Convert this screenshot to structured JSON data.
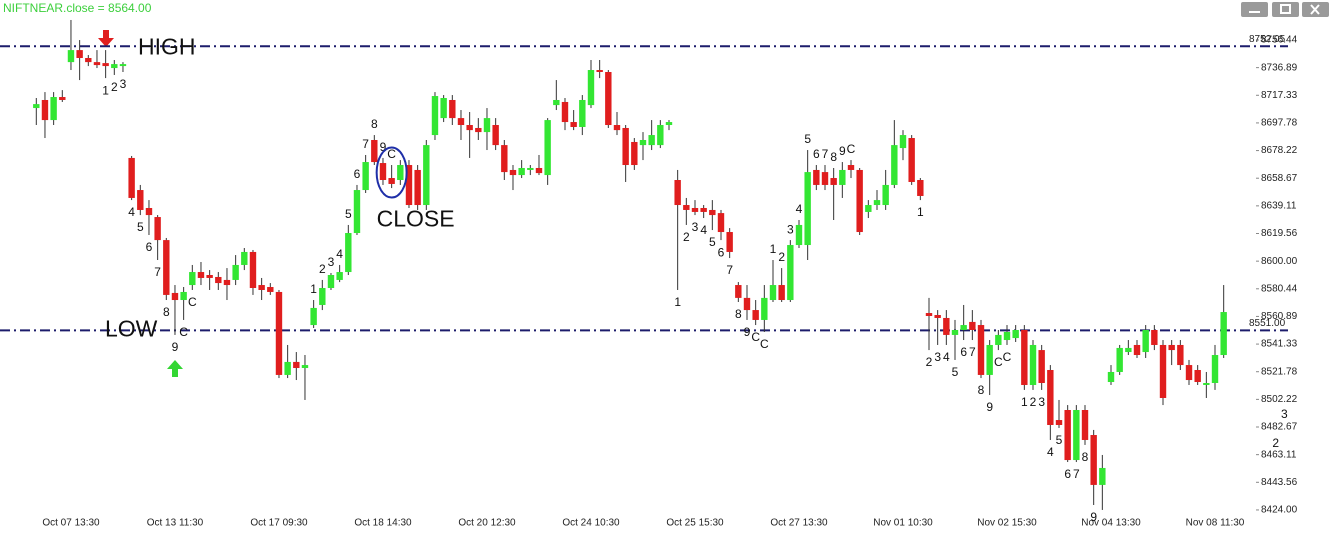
{
  "chart_data": {
    "type": "candlestick",
    "title": "NIFTNEAR.close = 8564.00",
    "categories": [
      null,
      null,
      null,
      null,
      "Oct 07 13:30",
      null,
      null,
      null,
      null,
      null,
      null,
      null,
      null,
      null,
      null,
      null,
      "Oct 13 11:30",
      null,
      null,
      null,
      null,
      null,
      null,
      null,
      null,
      null,
      null,
      null,
      "Oct 17 09:30",
      null,
      null,
      null,
      null,
      null,
      null,
      null,
      null,
      null,
      null,
      null,
      "Oct 18 14:30",
      null,
      null,
      null,
      null,
      null,
      null,
      null,
      null,
      null,
      null,
      null,
      "Oct 20 12:30",
      null,
      null,
      null,
      null,
      null,
      null,
      null,
      null,
      null,
      null,
      null,
      "Oct 24 10:30",
      null,
      null,
      null,
      null,
      null,
      null,
      null,
      null,
      null,
      null,
      null,
      "Oct 25 15:30",
      null,
      null,
      null,
      null,
      null,
      null,
      null,
      null,
      null,
      null,
      null,
      "Oct 27 13:30",
      null,
      null,
      null,
      null,
      null,
      null,
      null,
      null,
      null,
      null,
      null,
      "Nov 01 10:30",
      null,
      null,
      null,
      null,
      null,
      null,
      null,
      null,
      null,
      null,
      null,
      "Nov 02 15:30",
      null,
      null,
      null,
      null,
      null,
      null,
      null,
      null,
      null,
      null,
      null,
      "Nov 04 13:30",
      null,
      null,
      null,
      null,
      null,
      null,
      null,
      null,
      null,
      null,
      null,
      "Nov 08 11:30",
      null
    ],
    "open": [
      8708.3,
      8714.0,
      8699.8,
      8716.1,
      8740.8,
      8749.3,
      8743.7,
      8740.8,
      8740.1,
      8736.6,
      8738.0,
      8673.0,
      8650.3,
      8637.6,
      8631.2,
      8614.9,
      8577.5,
      8572.5,
      8583.1,
      8592.3,
      8590.2,
      8588.8,
      8586.7,
      8586.7,
      8597.3,
      8606.5,
      8583.1,
      8581.7,
      8578.2,
      8519.5,
      8528.7,
      8524.4,
      8554.8,
      8569.0,
      8581.0,
      8586.7,
      8592.3,
      8619.9,
      8650.3,
      8685.7,
      8669.4,
      8658.8,
      8657.4,
      8668.0,
      8664.5,
      8639.7,
      8689.2,
      8701.2,
      8714.0,
      8701.2,
      8696.3,
      8694.2,
      8691.3,
      8696.3,
      8682.1,
      8664.5,
      8660.9,
      8664.5,
      8665.9,
      8660.9,
      8710.4,
      8712.6,
      8698.4,
      8694.9,
      8710.4,
      8735.2,
      8733.8,
      8696.3,
      8694.2,
      8684.3,
      8682.1,
      8682.1,
      8682.1,
      8696.3,
      8657.4,
      8639.7,
      8637.6,
      8637.6,
      8636.2,
      8634.0,
      8620.6,
      8583.1,
      8574.0,
      8565.4,
      8558.4,
      8572.5,
      8583.1,
      8572.5,
      8611.4,
      8611.4,
      8664.5,
      8663.0,
      8658.8,
      8653.9,
      8668.0,
      8664.5,
      8634.8,
      8639.7,
      8639.7,
      8653.9,
      8680.0,
      8687.1,
      8657.4,
      8563.3,
      8561.9,
      8559.8,
      8547.8,
      8551.3,
      8557.0,
      8554.8,
      8519.5,
      8540.7,
      8544.2,
      8545.6,
      8551.3,
      8512.4,
      8537.1,
      8523.0,
      8487.6,
      8494.7,
      8459.3,
      8494.7,
      8477.0,
      8441.7,
      8514.5,
      8521.6,
      8535.7,
      8540.7,
      8535.7,
      8551.3,
      8540.7,
      8540.7,
      8540.7,
      8526.5,
      8523.0,
      8512.4,
      8513.8,
      8533.6
    ],
    "high": [
      8715.4,
      8719.6,
      8719.6,
      8721.0,
      8770.6,
      8756.4,
      8745.8,
      8749.3,
      8749.3,
      8742.3,
      8740.8,
      8674.4,
      8653.9,
      8643.2,
      8632.6,
      8616.4,
      8583.1,
      8581.7,
      8597.3,
      8599.4,
      8593.7,
      8592.3,
      8595.1,
      8604.3,
      8609.3,
      8607.9,
      8588.1,
      8584.5,
      8579.6,
      8540.7,
      8535.7,
      8533.6,
      8572.5,
      8586.7,
      8591.6,
      8597.3,
      8625.6,
      8653.9,
      8675.1,
      8689.2,
      8673.0,
      8668.0,
      8671.5,
      8671.5,
      8668.0,
      8685.7,
      8719.6,
      8717.5,
      8717.5,
      8706.9,
      8705.5,
      8701.2,
      8708.3,
      8701.2,
      8685.7,
      8668.0,
      8671.5,
      8668.0,
      8675.1,
      8701.2,
      8728.1,
      8715.4,
      8706.9,
      8717.5,
      8742.3,
      8742.3,
      8735.2,
      8705.5,
      8696.3,
      8687.1,
      8691.3,
      8699.8,
      8699.8,
      8699.8,
      8664.5,
      8644.7,
      8643.2,
      8639.7,
      8643.2,
      8636.2,
      8623.4,
      8585.2,
      8583.1,
      8572.5,
      8583.1,
      8600.8,
      8595.1,
      8614.9,
      8629.1,
      8678.6,
      8668.0,
      8668.0,
      8665.9,
      8670.1,
      8671.5,
      8665.9,
      8643.2,
      8650.3,
      8664.5,
      8699.8,
      8692.7,
      8689.2,
      8658.8,
      8574.0,
      8565.4,
      8565.4,
      8558.4,
      8569.0,
      8565.4,
      8558.4,
      8544.2,
      8551.3,
      8554.8,
      8554.8,
      8554.8,
      8544.2,
      8540.7,
      8526.5,
      8501.8,
      8498.2,
      8498.2,
      8498.2,
      8480.6,
      8462.9,
      8526.5,
      8540.7,
      8544.2,
      8544.2,
      8554.8,
      8554.8,
      8544.2,
      8544.2,
      8544.2,
      8530.1,
      8526.5,
      8521.6,
      8540.7,
      8583.1
    ],
    "low": [
      8696.3,
      8687.1,
      8696.3,
      8712.6,
      8735.2,
      8728.1,
      8738.0,
      8736.6,
      8729.5,
      8731.7,
      8733.8,
      8643.2,
      8632.6,
      8618.5,
      8600.8,
      8572.5,
      8547.8,
      8558.4,
      8579.6,
      8583.1,
      8579.6,
      8579.6,
      8572.5,
      8583.1,
      8593.7,
      8576.1,
      8572.5,
      8576.1,
      8517.3,
      8517.3,
      8515.9,
      8501.8,
      8552.7,
      8565.4,
      8579.6,
      8585.2,
      8590.2,
      8618.5,
      8648.2,
      8668.0,
      8653.9,
      8651.7,
      8653.9,
      8637.6,
      8636.2,
      8636.2,
      8685.7,
      8698.4,
      8696.3,
      8685.7,
      8673.0,
      8685.7,
      8678.6,
      8678.6,
      8657.4,
      8650.3,
      8658.8,
      8660.9,
      8660.9,
      8653.9,
      8706.9,
      8692.7,
      8692.7,
      8689.2,
      8708.3,
      8729.5,
      8694.2,
      8689.2,
      8656.0,
      8664.5,
      8671.5,
      8678.6,
      8680.0,
      8692.7,
      8579.6,
      8625.6,
      8632.6,
      8630.5,
      8622.0,
      8614.9,
      8602.2,
      8571.1,
      8558.4,
      8554.8,
      8549.9,
      8571.1,
      8571.1,
      8571.1,
      8609.3,
      8600.8,
      8650.3,
      8650.3,
      8629.1,
      8644.7,
      8658.8,
      8618.5,
      8630.5,
      8636.2,
      8636.2,
      8651.7,
      8671.5,
      8653.9,
      8643.2,
      8537.1,
      8540.7,
      8540.7,
      8530.1,
      8544.2,
      8544.2,
      8517.3,
      8505.3,
      8537.1,
      8540.7,
      8542.8,
      8508.9,
      8508.9,
      8508.9,
      8473.5,
      8482.0,
      8457.9,
      8457.9,
      8470.0,
      8427.5,
      8424.0,
      8512.4,
      8519.5,
      8533.6,
      8531.5,
      8531.5,
      8537.1,
      8498.2,
      8526.5,
      8523.0,
      8512.4,
      8512.4,
      8503.2,
      8508.9,
      8531.5
    ],
    "close": [
      8711.1,
      8699.8,
      8716.1,
      8714.0,
      8749.3,
      8743.7,
      8740.8,
      8738.7,
      8738.0,
      8739.4,
      8739.4,
      8644.7,
      8636.2,
      8632.6,
      8614.9,
      8576.1,
      8572.5,
      8578.2,
      8592.3,
      8588.1,
      8588.1,
      8584.5,
      8583.1,
      8597.3,
      8606.5,
      8581.0,
      8579.6,
      8578.2,
      8519.5,
      8528.7,
      8524.4,
      8526.5,
      8566.9,
      8581.0,
      8590.2,
      8592.3,
      8619.9,
      8650.3,
      8670.1,
      8670.1,
      8657.4,
      8654.6,
      8668.0,
      8639.7,
      8639.7,
      8682.1,
      8716.8,
      8715.4,
      8701.2,
      8696.3,
      8692.7,
      8691.3,
      8701.2,
      8682.1,
      8663.0,
      8660.9,
      8665.9,
      8665.9,
      8662.3,
      8699.8,
      8714.0,
      8698.4,
      8694.9,
      8714.0,
      8735.2,
      8733.8,
      8696.3,
      8692.7,
      8668.0,
      8668.0,
      8685.7,
      8689.2,
      8696.3,
      8698.4,
      8639.7,
      8636.2,
      8634.8,
      8634.8,
      8632.6,
      8620.6,
      8606.5,
      8574.0,
      8565.4,
      8558.4,
      8574.0,
      8583.1,
      8572.5,
      8611.4,
      8625.6,
      8663.0,
      8653.9,
      8653.9,
      8653.9,
      8664.5,
      8664.5,
      8620.6,
      8639.7,
      8643.2,
      8653.9,
      8682.1,
      8689.2,
      8656.0,
      8646.1,
      8561.2,
      8559.8,
      8547.8,
      8551.3,
      8554.8,
      8551.3,
      8519.5,
      8540.7,
      8547.8,
      8549.9,
      8551.3,
      8512.4,
      8540.7,
      8513.8,
      8484.1,
      8484.1,
      8459.3,
      8494.7,
      8473.5,
      8441.7,
      8453.7,
      8521.6,
      8538.6,
      8538.6,
      8533.6,
      8551.3,
      8540.7,
      8503.2,
      8537.1,
      8526.5,
      8515.9,
      8514.5,
      8513.8,
      8533.6,
      8564.0
    ],
    "up_color": "#33e633",
    "down_color": "#e01e1e",
    "ylim": [
      8420,
      8772
    ],
    "yticks": [
      8756.44,
      8736.89,
      8717.33,
      8697.78,
      8678.22,
      8658.67,
      8639.11,
      {
        "value": 8619.56,
        "label": "8619.56"
      },
      {
        "value": 8600,
        "label": "8600.00"
      },
      8580.44,
      8560.89,
      8541.33,
      8521.78,
      8502.22,
      8482.67,
      8463.11,
      8443.56,
      {
        "value": 8424,
        "label": "8424.00"
      }
    ],
    "grid": false,
    "levels": [
      {
        "text": "HIGH",
        "value": 8752.05,
        "value_label": "8752.05"
      },
      {
        "text": "LOW",
        "value": 8551,
        "value_label": "8551.00"
      }
    ],
    "circle_note": {
      "text": "CLOSE",
      "index": 41
    },
    "annotations": [
      {
        "text": "1",
        "index": 8,
        "side": "below"
      },
      {
        "text": "2",
        "index": 9,
        "side": "below"
      },
      {
        "text": "3",
        "index": 10,
        "side": "below"
      },
      {
        "text": "4",
        "index": 11,
        "side": "below"
      },
      {
        "text": "5",
        "index": 12,
        "side": "below"
      },
      {
        "text": "6",
        "index": 13,
        "side": "below"
      },
      {
        "text": "7",
        "index": 14,
        "side": "below"
      },
      {
        "text": "8",
        "index": 15,
        "side": "below"
      },
      {
        "text": "9",
        "index": 16,
        "side": "below"
      },
      {
        "text": "C",
        "index": 17,
        "side": "below"
      },
      {
        "text": "C",
        "index": 18,
        "side": "below"
      },
      {
        "text": "1",
        "index": 32,
        "side": "above"
      },
      {
        "text": "2",
        "index": 33,
        "side": "above"
      },
      {
        "text": "3",
        "index": 34,
        "side": "above"
      },
      {
        "text": "4",
        "index": 35,
        "side": "above"
      },
      {
        "text": "5",
        "index": 36,
        "side": "above"
      },
      {
        "text": "6",
        "index": 37,
        "side": "above"
      },
      {
        "text": "7",
        "index": 38,
        "side": "above"
      },
      {
        "text": "8",
        "index": 39,
        "side": "above"
      },
      {
        "text": "9",
        "index": 40,
        "side": "above"
      },
      {
        "text": "C",
        "index": 41,
        "side": "above"
      },
      {
        "text": "1",
        "index": 74,
        "side": "below"
      },
      {
        "text": "2",
        "index": 75,
        "side": "below"
      },
      {
        "text": "3",
        "index": 76,
        "side": "below"
      },
      {
        "text": "4",
        "index": 77,
        "side": "below"
      },
      {
        "text": "5",
        "index": 78,
        "side": "below"
      },
      {
        "text": "6",
        "index": 79,
        "side": "below"
      },
      {
        "text": "7",
        "index": 80,
        "side": "below"
      },
      {
        "text": "8",
        "index": 81,
        "side": "below"
      },
      {
        "text": "9",
        "index": 82,
        "side": "below"
      },
      {
        "text": "C",
        "index": 83,
        "side": "below"
      },
      {
        "text": "C",
        "index": 84,
        "side": "below"
      },
      {
        "text": "1",
        "index": 85,
        "side": "above"
      },
      {
        "text": "2",
        "index": 86,
        "side": "above"
      },
      {
        "text": "3",
        "index": 87,
        "side": "above"
      },
      {
        "text": "4",
        "index": 88,
        "side": "above"
      },
      {
        "text": "5",
        "index": 89,
        "side": "above"
      },
      {
        "text": "6",
        "index": 90,
        "side": "above"
      },
      {
        "text": "7",
        "index": 91,
        "side": "above"
      },
      {
        "text": "8",
        "index": 92,
        "side": "above"
      },
      {
        "text": "9",
        "index": 93,
        "side": "above"
      },
      {
        "text": "C",
        "index": 94,
        "side": "above"
      },
      {
        "text": "1",
        "index": 102,
        "side": "below"
      },
      {
        "text": "2",
        "index": 103,
        "side": "below"
      },
      {
        "text": "3",
        "index": 104,
        "side": "below"
      },
      {
        "text": "4",
        "index": 105,
        "side": "below"
      },
      {
        "text": "5",
        "index": 106,
        "side": "below"
      },
      {
        "text": "6",
        "index": 107,
        "side": "below"
      },
      {
        "text": "7",
        "index": 108,
        "side": "below"
      },
      {
        "text": "8",
        "index": 109,
        "side": "below"
      },
      {
        "text": "9",
        "index": 110,
        "side": "below"
      },
      {
        "text": "C",
        "index": 111,
        "side": "below"
      },
      {
        "text": "C",
        "index": 112,
        "side": "below"
      },
      {
        "text": "1",
        "index": 114,
        "side": "below"
      },
      {
        "text": "2",
        "index": 115,
        "side": "below"
      },
      {
        "text": "3",
        "index": 116,
        "side": "below"
      },
      {
        "text": "4",
        "index": 117,
        "side": "below"
      },
      {
        "text": "5",
        "index": 118,
        "side": "below"
      },
      {
        "text": "6",
        "index": 119,
        "side": "below"
      },
      {
        "text": "7",
        "index": 120,
        "side": "below"
      },
      {
        "text": "8",
        "index": 121,
        "side": "below"
      },
      {
        "text": "9",
        "index": 122,
        "side": "below"
      },
      {
        "text": "2",
        "index": 143,
        "level": 8470.7
      },
      {
        "text": "3",
        "index": 144,
        "level": 8491.2
      }
    ]
  }
}
